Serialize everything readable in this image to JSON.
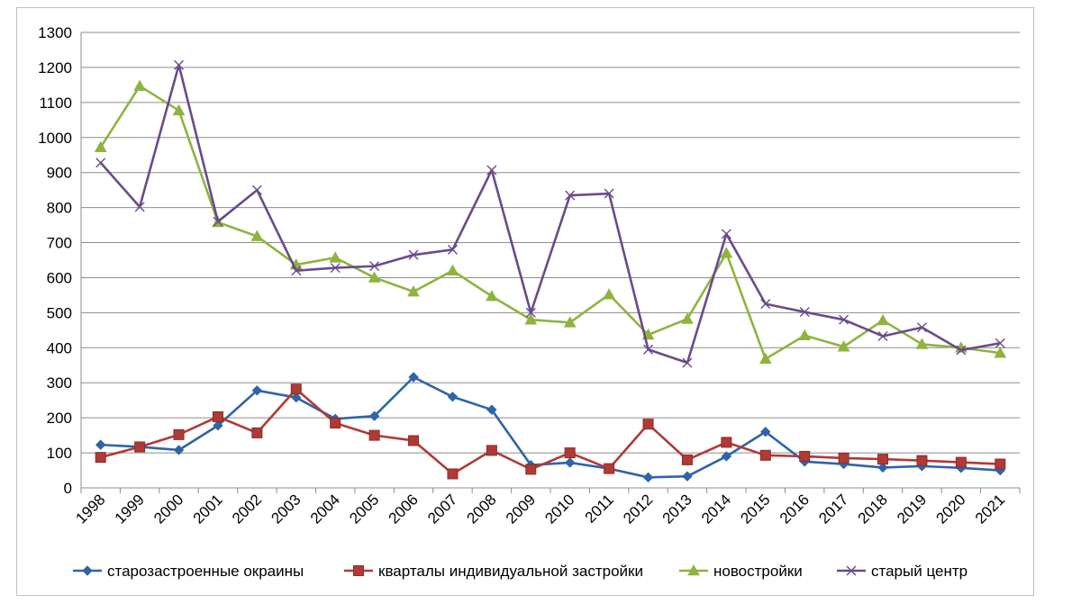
{
  "chart_data": {
    "type": "line",
    "title": "",
    "xlabel": "",
    "ylabel": "",
    "ylim": [
      0,
      1300
    ],
    "ytick_step": 100,
    "grid": true,
    "legend_position": "bottom",
    "categories": [
      "1998",
      "1999",
      "2000",
      "2001",
      "2002",
      "2003",
      "2004",
      "2005",
      "2006",
      "2007",
      "2008",
      "2009",
      "2010",
      "2011",
      "2012",
      "2013",
      "2014",
      "2015",
      "2016",
      "2017",
      "2018",
      "2019",
      "2020",
      "2021"
    ],
    "series": [
      {
        "name": "старозастроенные окраины",
        "color": "#2e64a9",
        "marker": "diamond",
        "values": [
          123,
          117,
          108,
          178,
          278,
          258,
          197,
          205,
          316,
          260,
          223,
          65,
          72,
          55,
          30,
          33,
          90,
          160,
          75,
          68,
          58,
          62,
          57,
          50
        ]
      },
      {
        "name": "кварталы индивидуальной застройки",
        "color": "#b03a35",
        "marker": "square",
        "values": [
          87,
          117,
          152,
          203,
          157,
          282,
          185,
          150,
          135,
          40,
          107,
          53,
          100,
          55,
          182,
          80,
          130,
          93,
          90,
          85,
          82,
          78,
          73,
          68
        ]
      },
      {
        "name": "новостройки",
        "color": "#8eb43f",
        "marker": "triangle",
        "values": [
          972,
          1147,
          1077,
          758,
          718,
          637,
          657,
          600,
          560,
          620,
          547,
          480,
          472,
          552,
          437,
          482,
          670,
          368,
          435,
          403,
          478,
          410,
          400,
          385
        ]
      },
      {
        "name": "старый центр",
        "color": "#6a4a8c",
        "marker": "x",
        "values": [
          928,
          802,
          1207,
          760,
          850,
          620,
          628,
          633,
          665,
          680,
          907,
          500,
          835,
          840,
          395,
          357,
          725,
          525,
          502,
          480,
          433,
          458,
          393,
          413
        ]
      }
    ]
  }
}
